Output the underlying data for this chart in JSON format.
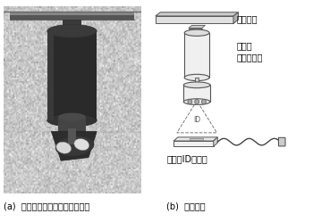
{
  "fig_width": 3.5,
  "fig_height": 2.49,
  "dpi": 100,
  "bg_color": "#ffffff",
  "caption_a": "(a)  可視光無線通訊器的實際外觀",
  "caption_b": "(b)  系統結構",
  "label_track": "燈座滑軌",
  "label_device": "可視光\n無線通訊器",
  "label_receiver": "可視光ID接收器",
  "caption_fontsize": 7.0,
  "label_fontsize": 7.0,
  "photo_bg": 0.78,
  "photo_wall_lines": true
}
